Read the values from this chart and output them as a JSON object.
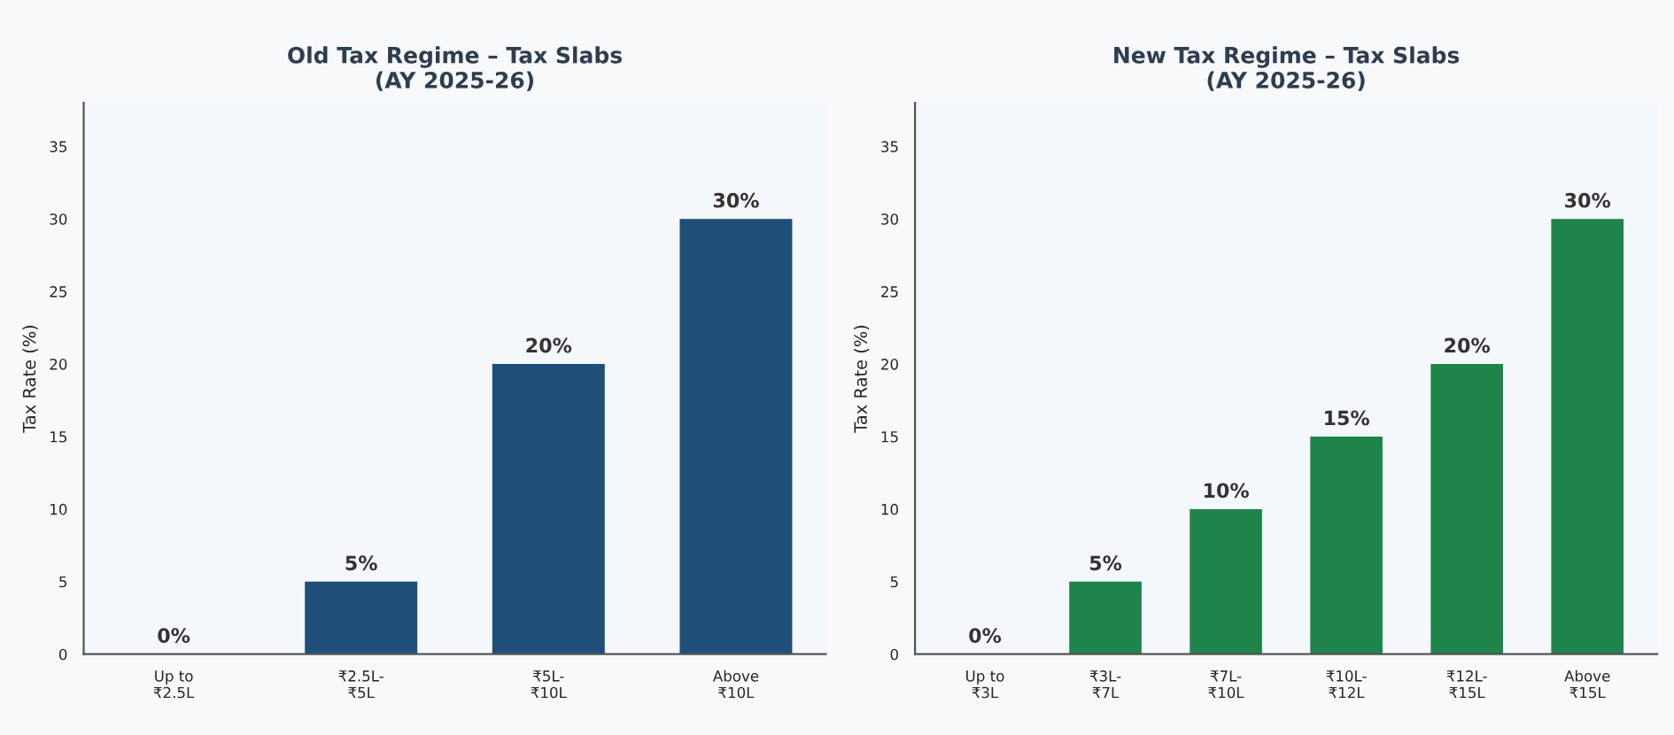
{
  "chart_data": [
    {
      "type": "bar",
      "title": "Old Tax Regime – Tax Slabs\n(AY 2025-26)",
      "ylabel": "Tax Rate (%)",
      "categories": [
        "Up to\n₹2.5L",
        "₹2.5L-\n₹5L",
        "₹5L-\n₹10L",
        "Above\n₹10L"
      ],
      "values": [
        0,
        5,
        20,
        30
      ],
      "color": "#1f4e79",
      "value_labels": [
        "0%",
        "5%",
        "20%",
        "30%"
      ],
      "ylim": [
        0,
        38
      ],
      "yticks": [
        0,
        5,
        10,
        15,
        20,
        25,
        30,
        35
      ],
      "grid": false,
      "legend": false
    },
    {
      "type": "bar",
      "title": "New Tax Regime – Tax Slabs\n(AY 2025-26)",
      "ylabel": "Tax Rate (%)",
      "categories": [
        "Up to\n₹3L",
        "₹3L-\n₹7L",
        "₹7L-\n₹10L",
        "₹10L-\n₹12L",
        "₹12L-\n₹15L",
        "Above\n₹15L"
      ],
      "values": [
        0,
        5,
        10,
        15,
        20,
        30
      ],
      "color": "#1e8449",
      "value_labels": [
        "0%",
        "5%",
        "10%",
        "15%",
        "20%",
        "30%"
      ],
      "ylim": [
        0,
        38
      ],
      "yticks": [
        0,
        5,
        10,
        15,
        20,
        25,
        30,
        35
      ],
      "grid": false,
      "legend": false
    }
  ]
}
